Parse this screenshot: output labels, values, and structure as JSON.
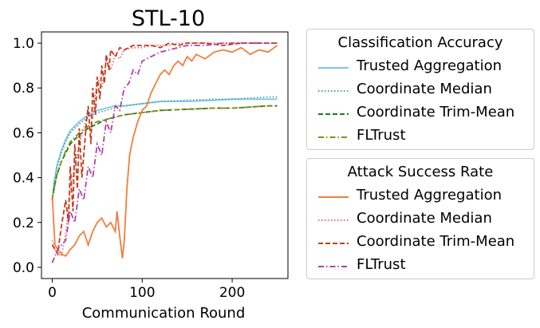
{
  "chart_data": {
    "type": "line",
    "title": "STL-10",
    "xlabel": "Communication Round",
    "ylabel": "",
    "xlim": [
      -12,
      262
    ],
    "ylim": [
      -0.05,
      1.05
    ],
    "xticks": [
      0,
      100,
      200
    ],
    "xtick_labels": [
      "0",
      "100",
      "200"
    ],
    "yticks": [
      0.0,
      0.2,
      0.4,
      0.6,
      0.8,
      1.0
    ],
    "ytick_labels": [
      "0.0",
      "0.2",
      "0.4",
      "0.6",
      "0.8",
      "1.0"
    ],
    "grid": false,
    "legends": [
      {
        "title": "Classification Accuracy",
        "placement": "outside-right-top",
        "entries": [
          {
            "name": "Trusted Aggregation",
            "color": "#7ec8e3",
            "dash": "solid"
          },
          {
            "name": "Coordinate Median",
            "color": "#3aa6a6",
            "dash": "dotted"
          },
          {
            "name": "Coordinate Trim-Mean",
            "color": "#1f7a1f",
            "dash": "dashed"
          },
          {
            "name": "FLTrust",
            "color": "#8c8c1a",
            "dash": "dashdot"
          }
        ]
      },
      {
        "title": "Attack Success Rate",
        "placement": "outside-right-bottom",
        "entries": [
          {
            "name": "Trusted Aggregation",
            "color": "#f07f3c",
            "dash": "solid"
          },
          {
            "name": "Coordinate Median",
            "color": "#e06c75",
            "dash": "dotted"
          },
          {
            "name": "Coordinate Trim-Mean",
            "color": "#c23b1a",
            "dash": "dashed"
          },
          {
            "name": "FLTrust",
            "color": "#b040a8",
            "dash": "dashdot"
          }
        ]
      }
    ],
    "series": [
      {
        "group": "Classification Accuracy",
        "name": "Trusted Aggregation",
        "color": "#7ec8e3",
        "dash": "solid",
        "x": [
          0,
          2,
          5,
          10,
          15,
          20,
          30,
          40,
          50,
          60,
          70,
          80,
          100,
          120,
          150,
          180,
          200,
          220,
          240,
          250
        ],
        "y": [
          0.3,
          0.38,
          0.45,
          0.52,
          0.57,
          0.61,
          0.65,
          0.68,
          0.7,
          0.71,
          0.72,
          0.72,
          0.73,
          0.74,
          0.74,
          0.745,
          0.75,
          0.75,
          0.75,
          0.75
        ]
      },
      {
        "group": "Classification Accuracy",
        "name": "Coordinate Median",
        "color": "#3aa6a6",
        "dash": "dotted",
        "x": [
          0,
          2,
          5,
          10,
          15,
          20,
          30,
          40,
          50,
          60,
          70,
          80,
          100,
          120,
          150,
          180,
          200,
          220,
          240,
          250
        ],
        "y": [
          0.3,
          0.37,
          0.44,
          0.51,
          0.56,
          0.6,
          0.64,
          0.67,
          0.69,
          0.7,
          0.71,
          0.72,
          0.73,
          0.74,
          0.745,
          0.75,
          0.75,
          0.755,
          0.76,
          0.76
        ]
      },
      {
        "group": "Classification Accuracy",
        "name": "Coordinate Trim-Mean",
        "color": "#1f7a1f",
        "dash": "dashed",
        "x": [
          0,
          2,
          5,
          10,
          15,
          20,
          30,
          40,
          50,
          60,
          70,
          80,
          100,
          120,
          150,
          180,
          200,
          220,
          240,
          250
        ],
        "y": [
          0.3,
          0.35,
          0.41,
          0.47,
          0.51,
          0.55,
          0.59,
          0.62,
          0.64,
          0.66,
          0.67,
          0.68,
          0.69,
          0.7,
          0.705,
          0.71,
          0.71,
          0.715,
          0.72,
          0.72
        ]
      },
      {
        "group": "Classification Accuracy",
        "name": "FLTrust",
        "color": "#8c8c1a",
        "dash": "dashdot",
        "x": [
          0,
          2,
          5,
          10,
          15,
          20,
          30,
          40,
          50,
          60,
          70,
          80,
          100,
          120,
          150,
          180,
          200,
          220,
          240,
          250
        ],
        "y": [
          0.3,
          0.35,
          0.41,
          0.47,
          0.52,
          0.56,
          0.6,
          0.63,
          0.65,
          0.66,
          0.67,
          0.68,
          0.69,
          0.7,
          0.705,
          0.71,
          0.71,
          0.715,
          0.72,
          0.72
        ]
      },
      {
        "group": "Attack Success Rate",
        "name": "Trusted Aggregation",
        "color": "#f07f3c",
        "dash": "solid",
        "x": [
          0,
          3,
          6,
          10,
          15,
          20,
          25,
          30,
          35,
          40,
          45,
          50,
          55,
          60,
          65,
          70,
          72,
          75,
          78,
          80,
          83,
          86,
          90,
          95,
          100,
          105,
          110,
          115,
          120,
          125,
          130,
          135,
          140,
          145,
          150,
          155,
          160,
          170,
          180,
          190,
          200,
          210,
          220,
          230,
          240,
          250
        ],
        "y": [
          0.32,
          0.1,
          0.08,
          0.06,
          0.05,
          0.08,
          0.1,
          0.14,
          0.16,
          0.1,
          0.16,
          0.2,
          0.22,
          0.18,
          0.2,
          0.16,
          0.25,
          0.14,
          0.04,
          0.12,
          0.35,
          0.5,
          0.58,
          0.65,
          0.7,
          0.72,
          0.78,
          0.82,
          0.86,
          0.88,
          0.86,
          0.9,
          0.92,
          0.9,
          0.94,
          0.92,
          0.95,
          0.93,
          0.96,
          0.97,
          0.96,
          0.98,
          0.95,
          0.97,
          0.96,
          0.99
        ]
      },
      {
        "group": "Attack Success Rate",
        "name": "Coordinate Median",
        "color": "#e06c75",
        "dash": "dotted",
        "x": [
          0,
          3,
          6,
          10,
          15,
          20,
          25,
          30,
          35,
          40,
          45,
          50,
          55,
          60,
          65,
          70,
          75,
          80,
          90,
          100,
          110,
          120,
          130,
          140,
          150,
          170,
          190,
          210,
          230,
          250
        ],
        "y": [
          0.12,
          0.08,
          0.06,
          0.05,
          0.15,
          0.35,
          0.45,
          0.55,
          0.62,
          0.7,
          0.66,
          0.85,
          0.8,
          0.92,
          0.88,
          0.95,
          0.93,
          0.97,
          0.98,
          0.98,
          0.99,
          0.99,
          0.99,
          1.0,
          1.0,
          1.0,
          1.0,
          1.0,
          1.0,
          1.0
        ]
      },
      {
        "group": "Attack Success Rate",
        "name": "Coordinate Trim-Mean",
        "color": "#c23b1a",
        "dash": "dashed",
        "x": [
          0,
          3,
          6,
          10,
          15,
          18,
          20,
          23,
          25,
          28,
          30,
          33,
          35,
          38,
          40,
          43,
          45,
          48,
          50,
          53,
          55,
          58,
          60,
          63,
          65,
          70,
          75,
          80,
          90,
          100,
          110,
          120,
          130,
          140,
          150,
          170,
          190,
          210,
          230,
          250
        ],
        "y": [
          0.1,
          0.08,
          0.06,
          0.18,
          0.3,
          0.2,
          0.45,
          0.25,
          0.55,
          0.35,
          0.62,
          0.4,
          0.5,
          0.65,
          0.72,
          0.55,
          0.8,
          0.68,
          0.85,
          0.75,
          0.9,
          0.82,
          0.95,
          0.88,
          0.97,
          0.94,
          0.98,
          0.97,
          0.99,
          0.99,
          0.99,
          0.98,
          1.0,
          0.99,
          1.0,
          1.0,
          0.99,
          1.0,
          1.0,
          1.0
        ]
      },
      {
        "group": "Attack Success Rate",
        "name": "FLTrust",
        "color": "#b040a8",
        "dash": "dashdot",
        "x": [
          0,
          3,
          6,
          10,
          15,
          20,
          25,
          30,
          35,
          40,
          45,
          50,
          55,
          60,
          65,
          70,
          75,
          80,
          85,
          90,
          95,
          100,
          110,
          120,
          130,
          140,
          150,
          170,
          190,
          210,
          230,
          250
        ],
        "y": [
          0.02,
          0.05,
          0.08,
          0.1,
          0.12,
          0.25,
          0.2,
          0.35,
          0.3,
          0.45,
          0.4,
          0.55,
          0.5,
          0.65,
          0.6,
          0.72,
          0.7,
          0.8,
          0.82,
          0.88,
          0.86,
          0.92,
          0.94,
          0.96,
          0.97,
          0.98,
          0.99,
          0.99,
          1.0,
          1.0,
          1.0,
          1.0
        ]
      }
    ]
  }
}
